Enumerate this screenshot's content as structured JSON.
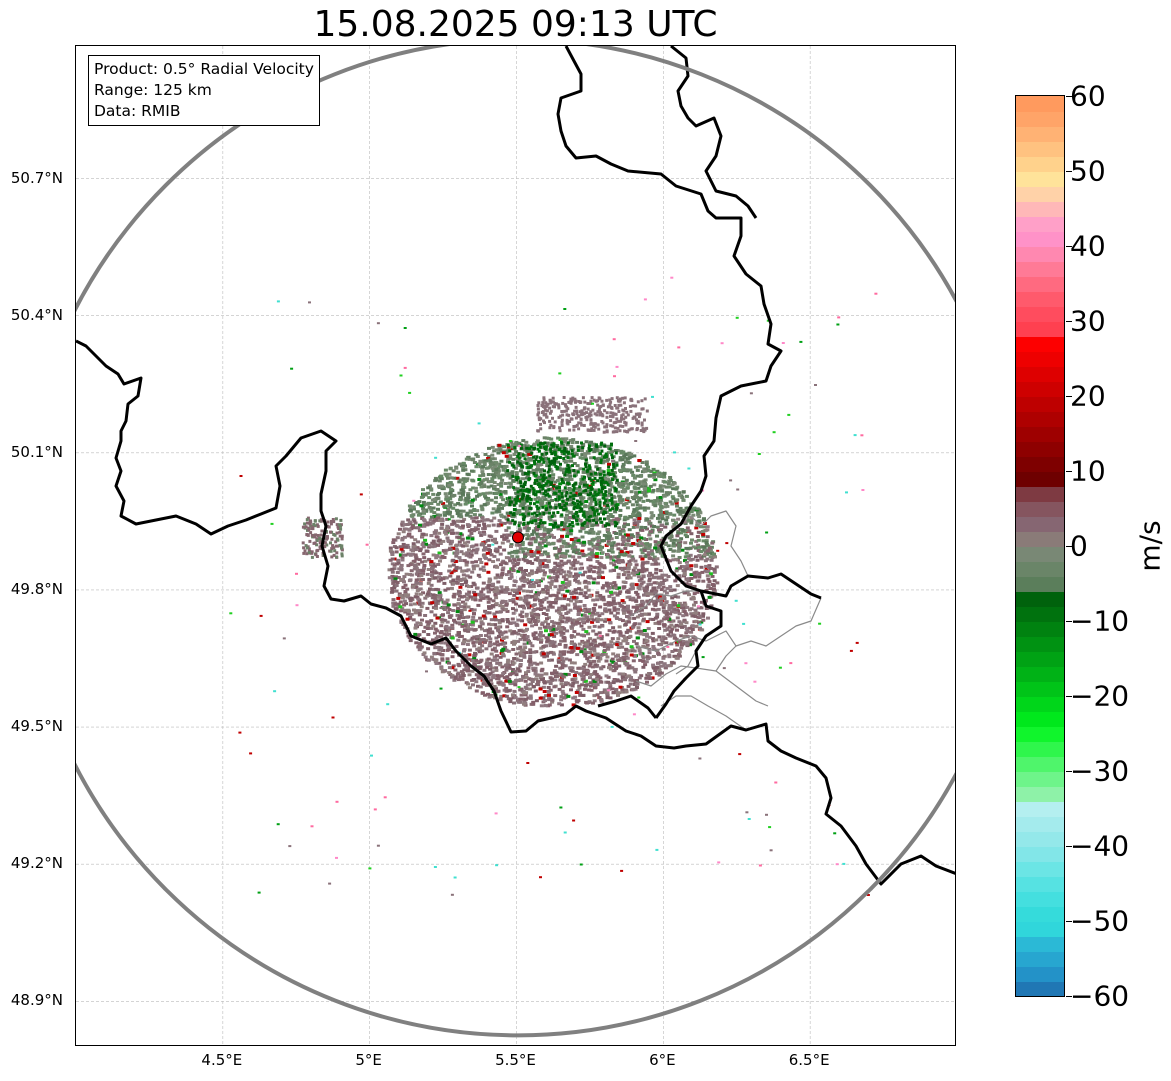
{
  "title": "15.08.2025 09:13 UTC",
  "info_box": {
    "lines": [
      "Product: 0.5° Radial Velocity",
      "Range: 125 km",
      "Data: RMIB"
    ]
  },
  "map": {
    "lon_ticks": [
      {
        "value": 4.5,
        "label": "4.5°E"
      },
      {
        "value": 5.0,
        "label": "5°E"
      },
      {
        "value": 5.5,
        "label": "5.5°E"
      },
      {
        "value": 6.0,
        "label": "6°E"
      },
      {
        "value": 6.5,
        "label": "6.5°E"
      }
    ],
    "lat_ticks": [
      {
        "value": 48.9,
        "label": "48.9°N"
      },
      {
        "value": 49.2,
        "label": "49.2°N"
      },
      {
        "value": 49.5,
        "label": "49.5°N"
      },
      {
        "value": 49.8,
        "label": "49.8°N"
      },
      {
        "value": 50.1,
        "label": "50.1°N"
      },
      {
        "value": 50.4,
        "label": "50.4°N"
      },
      {
        "value": 50.7,
        "label": "50.7°N"
      }
    ],
    "extent": {
      "lon_min": 4.0,
      "lon_max": 7.0,
      "lat_min": 48.8,
      "lat_max": 50.99
    },
    "radar_site": {
      "lon": 5.505,
      "lat": 49.915,
      "color": "#e00000"
    },
    "range_ring_color": "#808080",
    "grid": true
  },
  "colorbar": {
    "unit": "m/s",
    "min": -60,
    "max": 60,
    "ticks": [
      {
        "value": 60,
        "label": "60"
      },
      {
        "value": 50,
        "label": "50"
      },
      {
        "value": 40,
        "label": "40"
      },
      {
        "value": 30,
        "label": "30"
      },
      {
        "value": 20,
        "label": "20"
      },
      {
        "value": 10,
        "label": "10"
      },
      {
        "value": 0,
        "label": "0"
      },
      {
        "value": -10,
        "label": "−10"
      },
      {
        "value": -20,
        "label": "−20"
      },
      {
        "value": -30,
        "label": "−30"
      },
      {
        "value": -40,
        "label": "−40"
      },
      {
        "value": -50,
        "label": "−50"
      },
      {
        "value": -60,
        "label": "−60"
      }
    ],
    "segments": [
      {
        "from": -60,
        "to": -58,
        "color": "#2077b4"
      },
      {
        "from": -58,
        "to": -56,
        "color": "#2392c8"
      },
      {
        "from": -56,
        "to": -54,
        "color": "#27a6d0"
      },
      {
        "from": -54,
        "to": -52,
        "color": "#2bb9d6"
      },
      {
        "from": -52,
        "to": -50,
        "color": "#30d6db"
      },
      {
        "from": -50,
        "to": -48,
        "color": "#35dbdb"
      },
      {
        "from": -48,
        "to": -46,
        "color": "#44dfdf"
      },
      {
        "from": -46,
        "to": -44,
        "color": "#56e2e2"
      },
      {
        "from": -44,
        "to": -42,
        "color": "#6be5e5"
      },
      {
        "from": -42,
        "to": -40,
        "color": "#82e6e8"
      },
      {
        "from": -40,
        "to": -38,
        "color": "#94e8ea"
      },
      {
        "from": -38,
        "to": -36,
        "color": "#a4ebed"
      },
      {
        "from": -36,
        "to": -34,
        "color": "#b4eff0"
      },
      {
        "from": -34,
        "to": -32,
        "color": "#8ef2a8"
      },
      {
        "from": -32,
        "to": -30,
        "color": "#6ef48a"
      },
      {
        "from": -30,
        "to": -28,
        "color": "#4ff56b"
      },
      {
        "from": -28,
        "to": -26,
        "color": "#2ff64c"
      },
      {
        "from": -26,
        "to": -24,
        "color": "#10f52c"
      },
      {
        "from": -24,
        "to": -22,
        "color": "#00e81c"
      },
      {
        "from": -22,
        "to": -20,
        "color": "#00d61a"
      },
      {
        "from": -20,
        "to": -18,
        "color": "#00c418"
      },
      {
        "from": -18,
        "to": -16,
        "color": "#00b216"
      },
      {
        "from": -16,
        "to": -14,
        "color": "#00a214"
      },
      {
        "from": -14,
        "to": -12,
        "color": "#009212"
      },
      {
        "from": -12,
        "to": -10,
        "color": "#008210"
      },
      {
        "from": -10,
        "to": -8,
        "color": "#00720e"
      },
      {
        "from": -8,
        "to": -6,
        "color": "#00620c"
      },
      {
        "from": -6,
        "to": -4,
        "color": "#5b7e5b"
      },
      {
        "from": -4,
        "to": -2,
        "color": "#6a8568"
      },
      {
        "from": -2,
        "to": 0,
        "color": "#798875"
      },
      {
        "from": 0,
        "to": 2,
        "color": "#8a7b78"
      },
      {
        "from": 2,
        "to": 4,
        "color": "#866672"
      },
      {
        "from": 4,
        "to": 6,
        "color": "#85555f"
      },
      {
        "from": 6,
        "to": 8,
        "color": "#7e3a42"
      },
      {
        "from": 8,
        "to": 10,
        "color": "#6e0000"
      },
      {
        "from": 10,
        "to": 12,
        "color": "#7e0000"
      },
      {
        "from": 12,
        "to": 14,
        "color": "#8e0000"
      },
      {
        "from": 14,
        "to": 16,
        "color": "#9e0000"
      },
      {
        "from": 16,
        "to": 18,
        "color": "#ae0000"
      },
      {
        "from": 18,
        "to": 20,
        "color": "#be0000"
      },
      {
        "from": 20,
        "to": 22,
        "color": "#ce0000"
      },
      {
        "from": 22,
        "to": 24,
        "color": "#de0000"
      },
      {
        "from": 24,
        "to": 26,
        "color": "#ee0000"
      },
      {
        "from": 26,
        "to": 28,
        "color": "#fd0000"
      },
      {
        "from": 28,
        "to": 30,
        "color": "#ff4050"
      },
      {
        "from": 30,
        "to": 32,
        "color": "#ff4c5e"
      },
      {
        "from": 32,
        "to": 34,
        "color": "#ff5a6c"
      },
      {
        "from": 34,
        "to": 36,
        "color": "#ff6a80"
      },
      {
        "from": 36,
        "to": 38,
        "color": "#ff7a96"
      },
      {
        "from": 38,
        "to": 40,
        "color": "#ff88b0"
      },
      {
        "from": 40,
        "to": 42,
        "color": "#ff92c8"
      },
      {
        "from": 42,
        "to": 44,
        "color": "#ffa0c8"
      },
      {
        "from": 44,
        "to": 46,
        "color": "#ffb8b8"
      },
      {
        "from": 46,
        "to": 48,
        "color": "#ffd2a8"
      },
      {
        "from": 48,
        "to": 50,
        "color": "#ffe39a"
      },
      {
        "from": 50,
        "to": 52,
        "color": "#ffd28c"
      },
      {
        "from": 52,
        "to": 54,
        "color": "#ffc280"
      },
      {
        "from": 54,
        "to": 56,
        "color": "#ffb274"
      },
      {
        "from": 56,
        "to": 58,
        "color": "#ffa468"
      },
      {
        "from": 58,
        "to": 60,
        "color": "#ff9a5e"
      }
    ]
  }
}
